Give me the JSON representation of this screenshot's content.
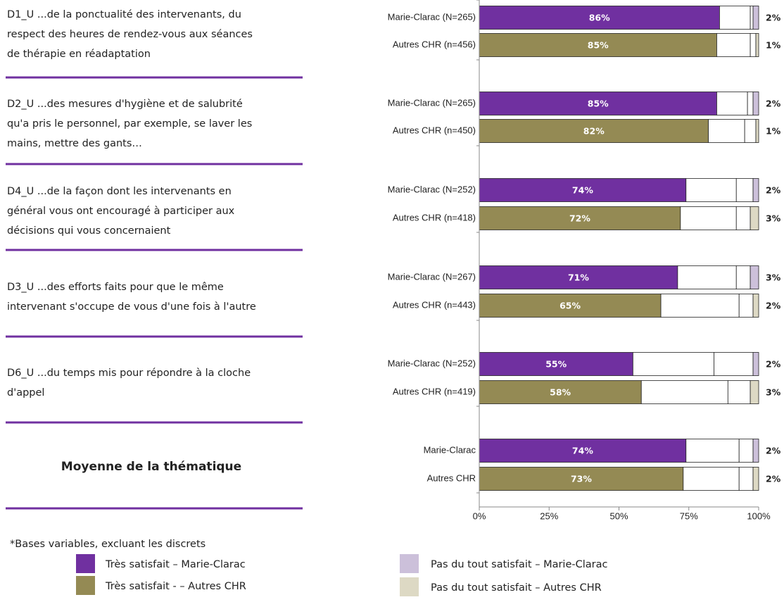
{
  "questions": [
    [
      "D1_U ...de la ponctualité des intervenants, du",
      "respect des heures de rendez-vous aux séances",
      "de thérapie en réadaptation"
    ],
    [
      "D2_U ...des mesures d'hygiène et de salubrité",
      "qu'a pris le personnel, par exemple, se laver les",
      "mains, mettre des gants…"
    ],
    [
      "D4_U ...de la façon dont les intervenants en",
      "général vous ont encouragé à participer aux",
      "décisions qui vous concernaient"
    ],
    [
      "D3_U ...des efforts faits pour que le même",
      "intervenant s'occupe de vous d'une fois à l'autre"
    ],
    [
      "D6_U ...du temps mis pour répondre à la cloche",
      "d'appel"
    ]
  ],
  "average_label": "Moyenne de la thématique",
  "footnote": "*Bases variables, excluant les discrets",
  "chart_data": {
    "type": "stacked_bar_h",
    "categories": [
      "Marie-Clarac (N=265)",
      "Autres CHR (n=456)",
      "Marie-Clarac (N=265)",
      "Autres CHR (n=450)",
      "Marie-Clarac (N=252)",
      "Autres CHR (n=418)",
      "Marie-Clarac (N=267)",
      "Autres CHR (n=443)",
      "Marie-Clarac (N=252)",
      "Autres CHR (n=419)",
      "Marie-Clarac",
      "Autres CHR"
    ],
    "series": [
      {
        "values": [
          86,
          85,
          85,
          82,
          74,
          72,
          71,
          65,
          55,
          58,
          74,
          73
        ],
        "value_labels": [
          "86%",
          "85%",
          "85%",
          "82%",
          "74%",
          "72%",
          "71%",
          "65%",
          "55%",
          "58%",
          "74%",
          "73%"
        ],
        "colors": [
          "#7030a0",
          "#948a54",
          "#7030a0",
          "#948a54",
          "#7030a0",
          "#948a54",
          "#7030a0",
          "#948a54",
          "#7030a0",
          "#948a54",
          "#7030a0",
          "#948a54"
        ]
      },
      {
        "values": [
          11,
          12,
          11,
          13,
          18,
          20,
          21,
          28,
          29,
          31,
          19,
          20
        ],
        "color": "#ffffff"
      },
      {
        "values": [
          1,
          2,
          2,
          4,
          6,
          5,
          5,
          5,
          14,
          8,
          5,
          5
        ],
        "color": "#ffffff"
      },
      {
        "values": [
          2,
          1,
          2,
          1,
          2,
          3,
          3,
          2,
          2,
          3,
          2,
          2
        ],
        "value_labels": [
          "2%",
          "1%",
          "2%",
          "1%",
          "2%",
          "3%",
          "3%",
          "2%",
          "2%",
          "3%",
          "2%",
          "2%"
        ],
        "colors": [
          "#ccc0da",
          "#ddd9c4",
          "#ccc0da",
          "#ddd9c4",
          "#ccc0da",
          "#ddd9c4",
          "#ccc0da",
          "#ddd9c4",
          "#ccc0da",
          "#ddd9c4",
          "#ccc0da",
          "#ddd9c4"
        ]
      }
    ],
    "xlim": [
      0,
      100
    ],
    "xticks": [
      {
        "value": 0,
        "label": "0%"
      },
      {
        "value": 25,
        "label": "25%"
      },
      {
        "value": 50,
        "label": "50%"
      },
      {
        "value": 75,
        "label": "75%"
      },
      {
        "value": 100,
        "label": "100%"
      }
    ],
    "legend": [
      {
        "name": "Très satisfait – Marie-Clarac",
        "color": "#7030a0"
      },
      {
        "name": "Très satisfait - – Autres CHR",
        "color": "#948a54"
      },
      {
        "name": "Pas du tout satisfait – Marie-Clarac",
        "color": "#ccc0da"
      },
      {
        "name": "Pas du tout satisfait – Autres CHR",
        "color": "#ddd9c4"
      }
    ]
  }
}
